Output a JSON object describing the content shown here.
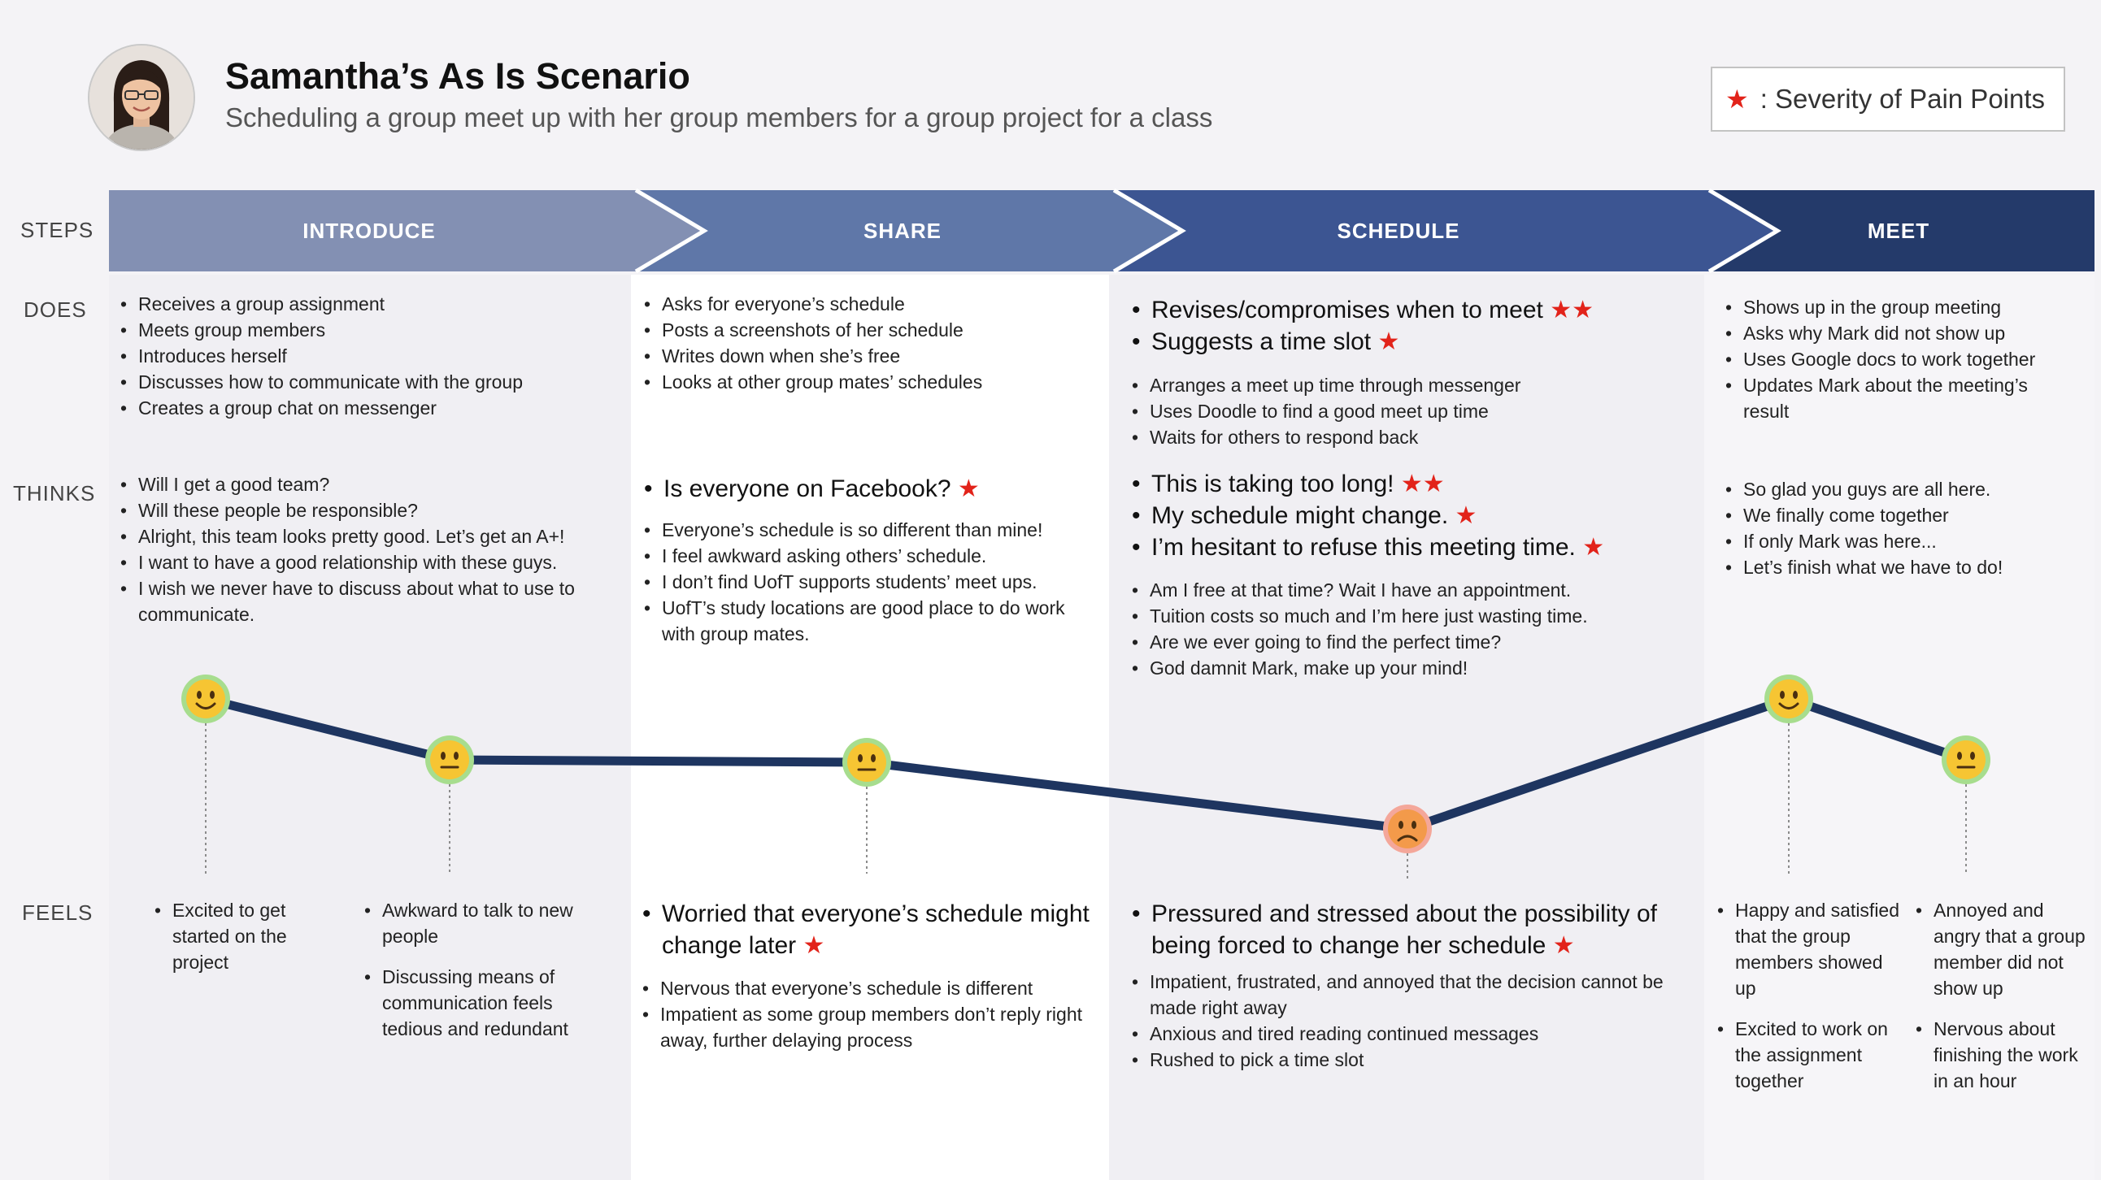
{
  "header": {
    "title": "Samantha’s As Is Scenario",
    "subtitle": "Scheduling a group meet up with her group members for a group project for a class",
    "legend_star": "★",
    "legend_text": ": Severity of Pain Points"
  },
  "row_labels": {
    "steps": "STEPS",
    "does": "DOES",
    "thinks": "THINKS",
    "feels": "FEELS"
  },
  "steps": [
    "INTRODUCE",
    "SHARE",
    "SCHEDULE",
    "MEET"
  ],
  "colors": {
    "introduce": "#8390b3",
    "share": "#5f77a8",
    "schedule": "#3c5592",
    "meet": "#243a6a",
    "journey_line": "#1e3560",
    "star": "#e2231a",
    "page_bg": "#f4f3f6"
  },
  "icons": {
    "avatar": "person-avatar",
    "star": "star-icon",
    "emotion": [
      "smiley-face-icon",
      "neutral-face-icon",
      "frowning-face-icon"
    ]
  },
  "does": {
    "introduce": [
      "Receives a group assignment",
      "Meets group members",
      "Introduces herself",
      "Discusses how to communicate with the group",
      "Creates a group chat on messenger"
    ],
    "share": [
      "Asks for everyone’s schedule",
      "Posts a screenshots of her schedule",
      "Writes down when she’s free",
      "Looks at other group mates’ schedules"
    ],
    "schedule_pain": [
      {
        "text": "Revises/compromises when to meet",
        "stars": "★★"
      },
      {
        "text": "Suggests a time slot",
        "stars": "★"
      }
    ],
    "schedule": [
      "Arranges a meet up time through messenger",
      "Uses Doodle to find a good meet up time",
      "Waits for others to respond back"
    ],
    "meet": [
      "Shows up in the group meeting",
      "Asks why Mark did not show up",
      "Uses Google docs to work together",
      "Updates Mark about the meeting’s result"
    ]
  },
  "thinks": {
    "introduce": [
      "Will I get a good team?",
      "Will these people be responsible?",
      "Alright, this team looks pretty good. Let’s get an A+!",
      "I want to have a good relationship with these guys.",
      "I wish we never have to discuss about what to use to communicate."
    ],
    "share_pain": [
      {
        "text": "Is everyone on Facebook?",
        "stars": "★"
      }
    ],
    "share": [
      "Everyone’s schedule is so different than mine!",
      "I feel awkward asking others’ schedule.",
      "I don’t find UofT supports students’ meet ups.",
      "UofT’s study locations are good place to do work with group mates."
    ],
    "schedule_pain": [
      {
        "text": "This is taking too long!",
        "stars": "★★"
      },
      {
        "text": "My schedule might change.",
        "stars": "★"
      },
      {
        "text": "I’m hesitant to refuse this meeting time.",
        "stars": "★"
      }
    ],
    "schedule": [
      "Am I free at that time? Wait I have an appointment.",
      "Tuition costs so much and I’m here just wasting time.",
      "Are we ever going to find the perfect time?",
      "God damnit Mark, make up your mind!"
    ],
    "meet": [
      "So glad you guys are all here.",
      "We finally come together",
      "If only Mark was here...",
      "Let’s finish what we have to do!"
    ]
  },
  "feels": {
    "intro_a": [
      "Excited to get started on the project"
    ],
    "intro_b": [
      "Awkward to talk to new people",
      "Discussing means of communication feels tedious and redundant"
    ],
    "share_pain": [
      {
        "text": "Worried that everyone’s schedule might change later",
        "stars": "★"
      }
    ],
    "share": [
      "Nervous that everyone’s schedule is different",
      "Impatient as some group members don’t reply right away, further delaying process"
    ],
    "schedule_pain": [
      {
        "text": "Pressured and stressed about the possibility of being forced to change her schedule",
        "stars": "★"
      }
    ],
    "schedule": [
      "Impatient, frustrated, and annoyed that the decision cannot be made right away",
      "Anxious and tired reading continued messages",
      "Rushed to pick a time slot"
    ],
    "meet_a": [
      "Happy and satisfied that the group members showed up",
      "Excited to work on the assignment together"
    ],
    "meet_b": [
      "Annoyed and angry that a group member did not show up",
      "Nervous about finishing the work in an hour"
    ]
  },
  "chart_data": {
    "type": "line",
    "series": [
      {
        "points": [
          {
            "emotion": "happy"
          },
          {
            "emotion": "neutral"
          },
          {
            "emotion": "neutral"
          },
          {
            "emotion": "sad"
          },
          {
            "emotion": "happy"
          },
          {
            "emotion": "neutral"
          }
        ]
      }
    ]
  }
}
